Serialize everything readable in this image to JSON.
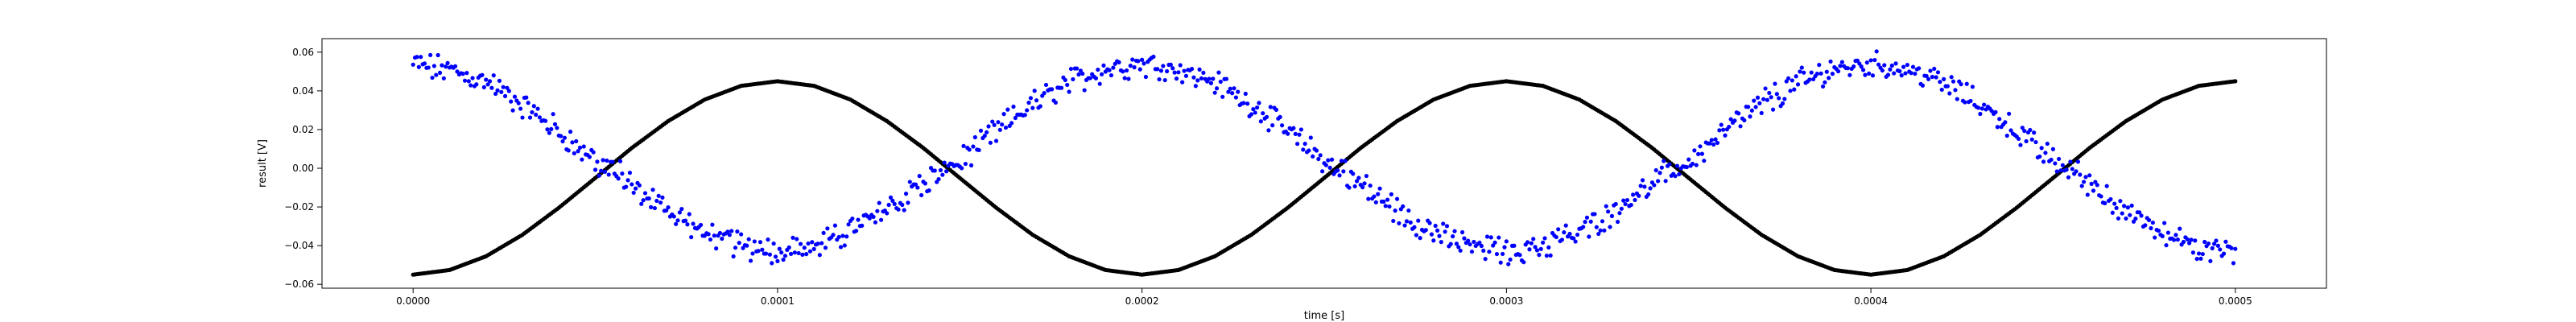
{
  "chart_data": {
    "type": "scatter",
    "title": "",
    "xlabel": "time [s]",
    "ylabel": "result [V]",
    "xlim": [
      -2.5e-05,
      0.000525
    ],
    "ylim": [
      -0.062,
      0.067
    ],
    "x_ticks": [
      0.0,
      0.0001,
      0.0002,
      0.0003,
      0.0004,
      0.0005
    ],
    "x_tick_labels": [
      "0.0000",
      "0.0001",
      "0.0002",
      "0.0003",
      "0.0004",
      "0.0005"
    ],
    "y_ticks": [
      -0.06,
      -0.04,
      -0.02,
      0.0,
      0.02,
      0.04,
      0.06
    ],
    "y_tick_labels": [
      "−0.06",
      "−0.04",
      "−0.02",
      "0.00",
      "0.02",
      "0.04",
      "0.06"
    ],
    "grid": false,
    "legend": "none",
    "series": [
      {
        "color": "#000000",
        "marker": "dot",
        "description_values": "sinusoid, period 0.0002 s, min -0.055 at x=0, max 0.045 at x=0.0001",
        "x": [
          0.0,
          1e-05,
          2e-05,
          3e-05,
          4e-05,
          5e-05,
          6e-05,
          7e-05,
          8e-05,
          9e-05,
          0.0001,
          0.00011,
          0.00012,
          0.00013,
          0.00014,
          0.00015,
          0.00016,
          0.00017,
          0.00018,
          0.00019,
          0.0002,
          0.00021,
          0.00022,
          0.00023,
          0.00024,
          0.00025,
          0.00026,
          0.00027,
          0.00028,
          0.00029,
          0.0003,
          0.00031,
          0.00032,
          0.00033,
          0.00034,
          0.00035,
          0.00036,
          0.00037,
          0.00038,
          0.00039,
          0.0004,
          0.00041,
          0.00042,
          0.00043,
          0.00044,
          0.00045,
          0.00046,
          0.00047,
          0.00048,
          0.00049,
          0.0005
        ],
        "y": [
          -0.055,
          -0.0526,
          -0.0455,
          -0.0344,
          -0.0204,
          -0.005,
          0.0105,
          0.0244,
          0.0355,
          0.0426,
          0.045,
          0.0426,
          0.0355,
          0.0244,
          0.0105,
          -0.005,
          -0.0204,
          -0.0344,
          -0.0455,
          -0.0526,
          -0.055,
          -0.0526,
          -0.0455,
          -0.0344,
          -0.0204,
          -0.005,
          0.0105,
          0.0244,
          0.0355,
          0.0426,
          0.045,
          0.0426,
          0.0355,
          0.0244,
          0.0105,
          -0.005,
          -0.0204,
          -0.0344,
          -0.0455,
          -0.0526,
          -0.055,
          -0.0526,
          -0.0455,
          -0.0344,
          -0.0204,
          -0.005,
          0.0105,
          0.0244,
          0.0355,
          0.0426,
          0.045
        ]
      },
      {
        "color": "#0000ff",
        "marker": "dot",
        "description_values": "noisy sinusoid, period 0.0002 s, max ~0.057 at x=0, min ~-0.045 at x=0.0001",
        "x": [
          0.0,
          1e-05,
          2e-05,
          3e-05,
          4e-05,
          5e-05,
          6e-05,
          7e-05,
          8e-05,
          9e-05,
          0.0001,
          0.00011,
          0.00012,
          0.00013,
          0.00014,
          0.00015,
          0.00016,
          0.00017,
          0.00018,
          0.00019,
          0.0002,
          0.00021,
          0.00022,
          0.00023,
          0.00024,
          0.00025,
          0.00026,
          0.00027,
          0.00028,
          0.00029,
          0.0003,
          0.00031,
          0.00032,
          0.00033,
          0.00034,
          0.00035,
          0.00036,
          0.00037,
          0.00038,
          0.00039,
          0.0004,
          0.00041,
          0.00042,
          0.00043,
          0.00044,
          0.00045,
          0.00046,
          0.00047,
          0.00048,
          0.00049,
          0.0005
        ],
        "y": [
          0.056,
          0.0535,
          0.0463,
          0.0351,
          0.0211,
          0.0055,
          -0.01,
          -0.024,
          -0.0352,
          -0.0424,
          -0.045,
          -0.0424,
          -0.0352,
          -0.024,
          -0.01,
          0.0055,
          0.0211,
          0.0351,
          0.0463,
          0.0535,
          0.056,
          0.0535,
          0.0463,
          0.0351,
          0.0211,
          0.0055,
          -0.01,
          -0.024,
          -0.0352,
          -0.0424,
          -0.045,
          -0.0424,
          -0.0352,
          -0.024,
          -0.01,
          0.0055,
          0.0211,
          0.0351,
          0.0463,
          0.0535,
          0.056,
          0.0535,
          0.0463,
          0.0351,
          0.0211,
          0.0055,
          -0.01,
          -0.024,
          -0.0352,
          -0.0424,
          -0.045
        ],
        "noise_amplitude": 0.005
      }
    ]
  }
}
